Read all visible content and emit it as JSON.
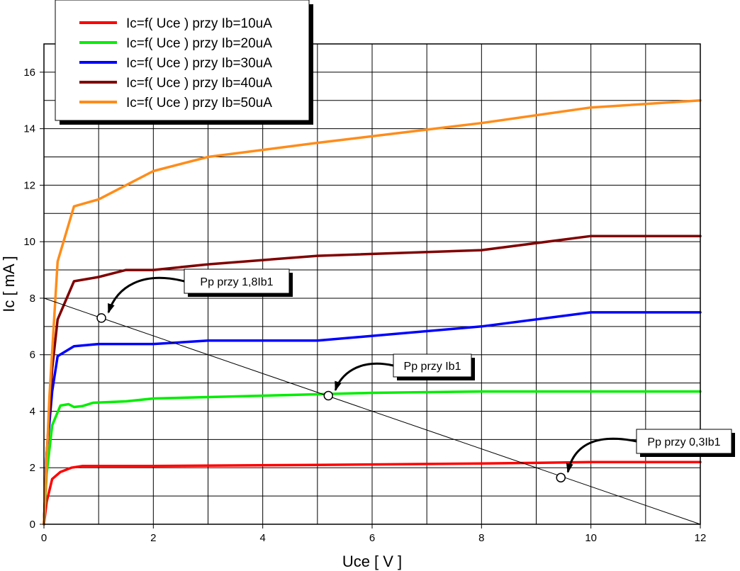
{
  "chart_data": {
    "type": "line",
    "title": "",
    "xlabel": "Uce [ V ]",
    "ylabel": "Ic [ mA ]",
    "xlim": [
      0,
      12
    ],
    "ylim": [
      0,
      17
    ],
    "xticks": [
      0,
      2,
      4,
      6,
      8,
      10,
      12
    ],
    "yticks": [
      0,
      2,
      4,
      6,
      8,
      10,
      12,
      14,
      16
    ],
    "grid": true,
    "legend_position": "top-left",
    "series": [
      {
        "name": "Ic=f( Uce ) przy Ib=10uA",
        "color": "#ff0000",
        "x": [
          0,
          0.05,
          0.15,
          0.3,
          0.5,
          0.7,
          2,
          5,
          8,
          10,
          12
        ],
        "y": [
          0,
          0.8,
          1.6,
          1.85,
          2.0,
          2.06,
          2.06,
          2.1,
          2.15,
          2.2,
          2.2
        ]
      },
      {
        "name": "Ic=f( Uce ) przy Ib=20uA",
        "color": "#00ee00",
        "x": [
          0,
          0.05,
          0.15,
          0.3,
          0.45,
          0.55,
          0.7,
          0.9,
          1.5,
          2,
          3,
          5,
          6,
          8,
          10,
          12
        ],
        "y": [
          0,
          1.8,
          3.5,
          4.2,
          4.25,
          4.15,
          4.18,
          4.3,
          4.35,
          4.45,
          4.5,
          4.6,
          4.65,
          4.7,
          4.7,
          4.7
        ]
      },
      {
        "name": "Ic=f( Uce ) przy Ib=30uA",
        "color": "#0000ff",
        "x": [
          0,
          0.05,
          0.15,
          0.25,
          0.55,
          1,
          2,
          3,
          5,
          8,
          10,
          12
        ],
        "y": [
          0,
          2.5,
          4.7,
          5.95,
          6.3,
          6.38,
          6.38,
          6.5,
          6.5,
          7.0,
          7.5,
          7.5
        ]
      },
      {
        "name": "Ic=f( Uce ) przy Ib=40uA",
        "color": "#800000",
        "x": [
          0,
          0.05,
          0.15,
          0.25,
          0.55,
          1,
          1.5,
          2,
          3,
          5,
          8,
          10,
          12
        ],
        "y": [
          0,
          2.5,
          5.5,
          7.25,
          8.6,
          8.75,
          9.0,
          9.0,
          9.2,
          9.5,
          9.7,
          10.2,
          10.2
        ]
      },
      {
        "name": "Ic=f( Uce ) przy Ib=50uA",
        "color": "#ff8c1a",
        "x": [
          0,
          0.1,
          0.25,
          0.55,
          1,
          1.5,
          2,
          3,
          5,
          8,
          10,
          12
        ],
        "y": [
          0,
          4.5,
          9.3,
          11.25,
          11.5,
          12.0,
          12.5,
          13.0,
          13.5,
          14.2,
          14.75,
          15.0
        ]
      },
      {
        "name": "",
        "color": "#000000",
        "x": [
          0,
          12
        ],
        "y": [
          8,
          0
        ]
      }
    ],
    "annotations": [
      {
        "text": "Pp przy 1,8Ib1",
        "point": [
          1.05,
          7.3
        ]
      },
      {
        "text": "Pp przy Ib1",
        "point": [
          5.2,
          4.55
        ]
      },
      {
        "text": "Pp przy 0,3Ib1",
        "point": [
          9.45,
          1.65
        ]
      }
    ]
  }
}
